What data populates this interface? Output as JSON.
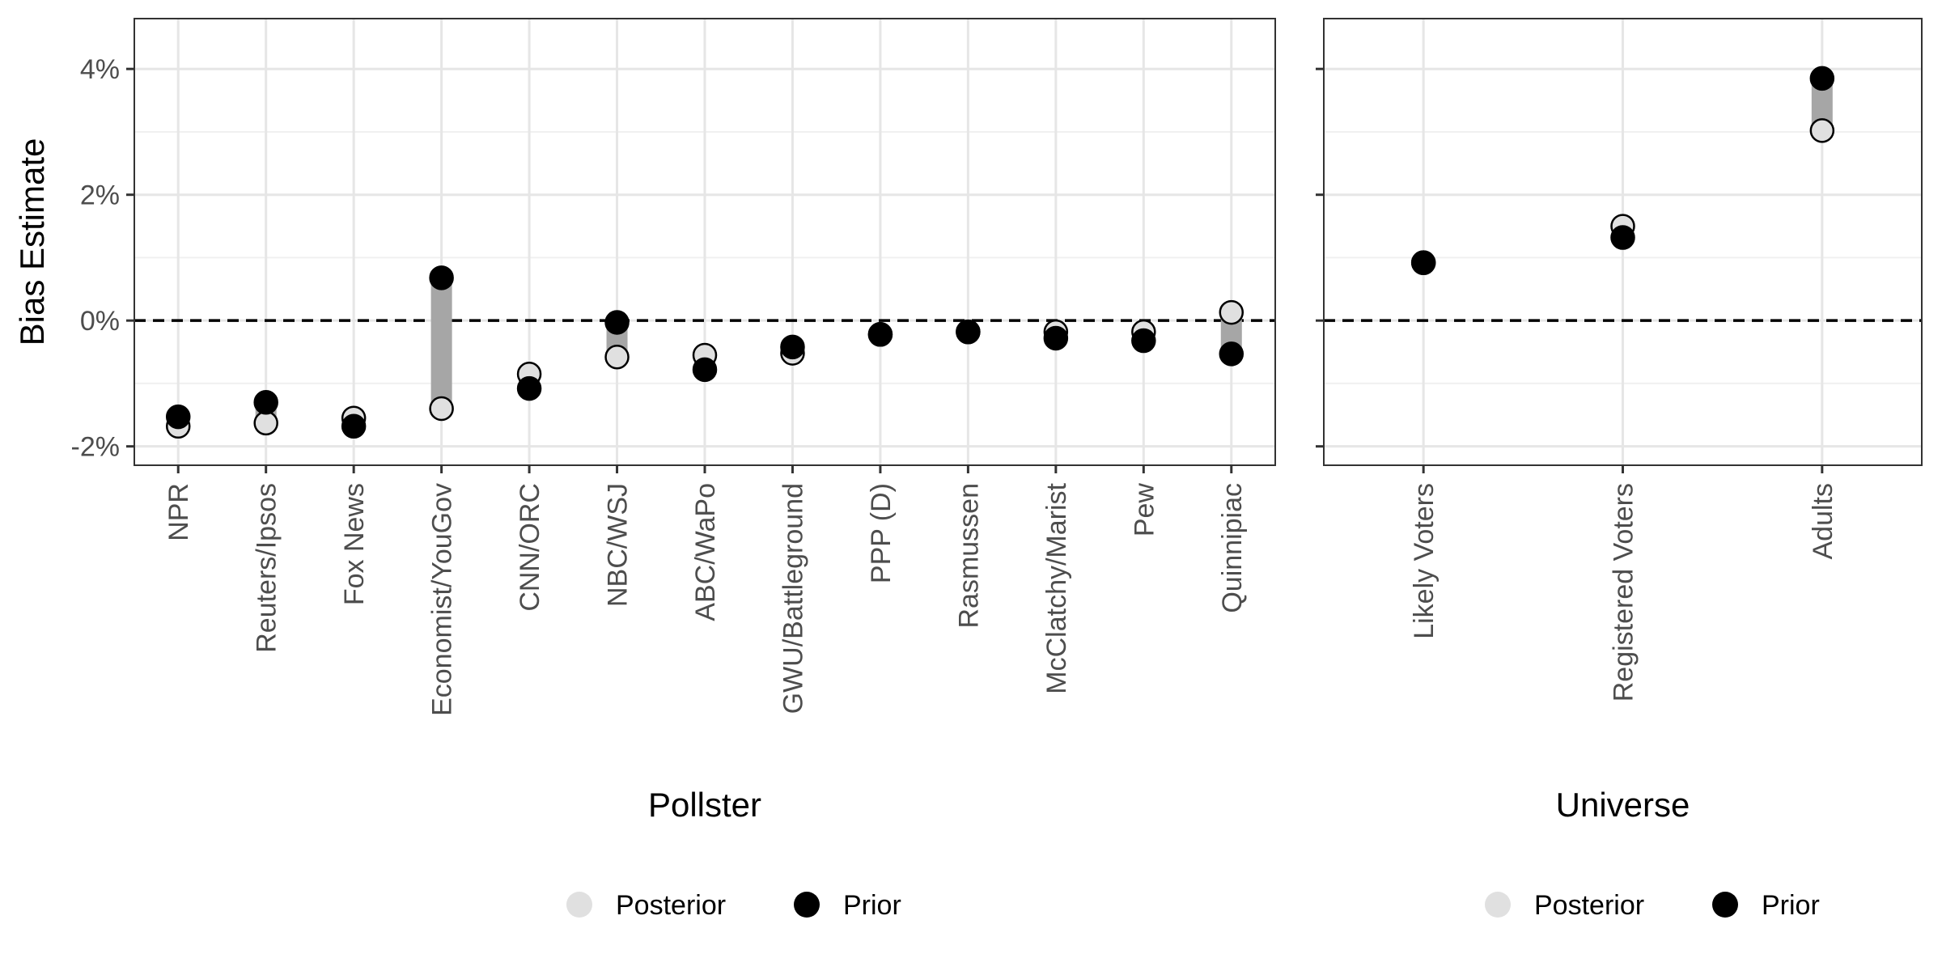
{
  "chart_data": [
    {
      "type": "scatter",
      "panel": "pollster",
      "xlabel": "Pollster",
      "ylabel": "Bias Estimate",
      "ylim": [
        -2.3,
        4.8
      ],
      "yticks": [
        -2,
        0,
        2,
        4
      ],
      "ytick_labels": [
        "-2%",
        "0%",
        "2%",
        "4%"
      ],
      "reference_line": 0,
      "grid": true,
      "categories": [
        "NPR",
        "Reuters/Ipsos",
        "Fox News",
        "Economist/YouGov",
        "CNN/ORC",
        "NBC/WSJ",
        "ABC/WaPo",
        "GWU/Battleground",
        "PPP (D)",
        "Rasmussen",
        "McClatchy/Marist",
        "Pew",
        "Quinnipiac"
      ],
      "series": [
        {
          "name": "Posterior",
          "color": "#e0e0e0",
          "values": [
            -1.68,
            -1.63,
            -1.55,
            -1.4,
            -0.85,
            -0.58,
            -0.55,
            -0.52,
            -0.22,
            -0.18,
            -0.18,
            -0.18,
            0.13
          ]
        },
        {
          "name": "Prior",
          "color": "#000000",
          "values": [
            -1.53,
            -1.3,
            -1.68,
            0.68,
            -1.08,
            -0.03,
            -0.78,
            -0.42,
            -0.22,
            -0.18,
            -0.28,
            -0.32,
            -0.53
          ]
        }
      ],
      "legend": {
        "position": "bottom",
        "items": [
          "Posterior",
          "Prior"
        ]
      }
    },
    {
      "type": "scatter",
      "panel": "universe",
      "xlabel": "Universe",
      "ylabel": "",
      "ylim": [
        -2.3,
        4.8
      ],
      "yticks": [
        -2,
        0,
        2,
        4
      ],
      "reference_line": 0,
      "grid": true,
      "categories": [
        "Likely Voters",
        "Registered Voters",
        "Adults"
      ],
      "series": [
        {
          "name": "Posterior",
          "color": "#e0e0e0",
          "values": [
            0.92,
            1.5,
            3.02
          ]
        },
        {
          "name": "Prior",
          "color": "#000000",
          "values": [
            0.92,
            1.32,
            3.85
          ]
        }
      ],
      "legend": {
        "position": "bottom",
        "items": [
          "Posterior",
          "Prior"
        ]
      }
    }
  ]
}
